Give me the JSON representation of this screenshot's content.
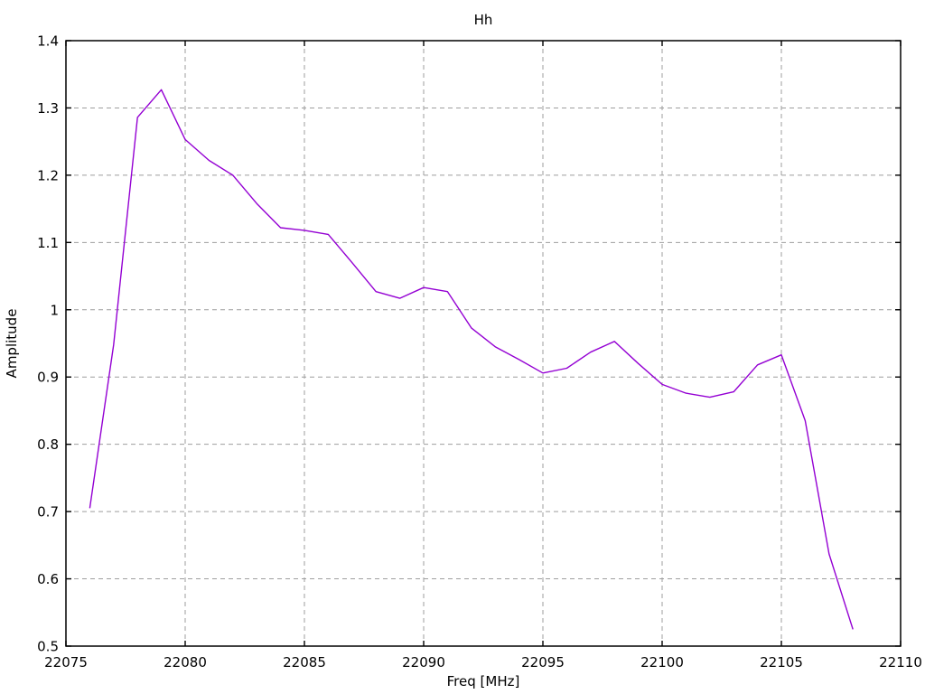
{
  "chart_data": {
    "type": "line",
    "title": "Hh",
    "xlabel": "Freq [MHz]",
    "ylabel": "Amplitude",
    "xlim": [
      22075,
      22110
    ],
    "ylim": [
      0.5,
      1.4
    ],
    "x_tick_labels": [
      "22075",
      "22080",
      "22085",
      "22090",
      "22095",
      "22100",
      "22105",
      "22110"
    ],
    "y_tick_labels": [
      "0.5",
      "0.6",
      "0.7",
      "0.8",
      "0.9",
      "1",
      "1.1",
      "1.2",
      "1.3",
      "1.4"
    ],
    "grid": true,
    "legend": "none",
    "colors": {
      "line": "#9400d3",
      "grid": "#9e9e9e",
      "border": "#000000",
      "background": "#ffffff"
    },
    "series": [
      {
        "name": "Hh",
        "x": [
          22076,
          22077,
          22078,
          22079,
          22080,
          22081,
          22082,
          22083,
          22084,
          22085,
          22086,
          22087,
          22088,
          22089,
          22090,
          22091,
          22092,
          22093,
          22094,
          22095,
          22096,
          22097,
          22098,
          22099,
          22100,
          22101,
          22102,
          22103,
          22104,
          22105,
          22106,
          22107,
          22108
        ],
        "y": [
          0.705,
          0.948,
          1.286,
          1.327,
          1.253,
          1.222,
          1.2,
          1.158,
          1.122,
          1.118,
          1.112,
          1.07,
          1.027,
          1.017,
          1.033,
          1.027,
          0.973,
          0.945,
          0.926,
          0.906,
          0.913,
          0.937,
          0.953,
          0.92,
          0.889,
          0.876,
          0.87,
          0.878,
          0.918,
          0.933,
          0.835,
          0.637,
          0.525
        ]
      }
    ]
  }
}
